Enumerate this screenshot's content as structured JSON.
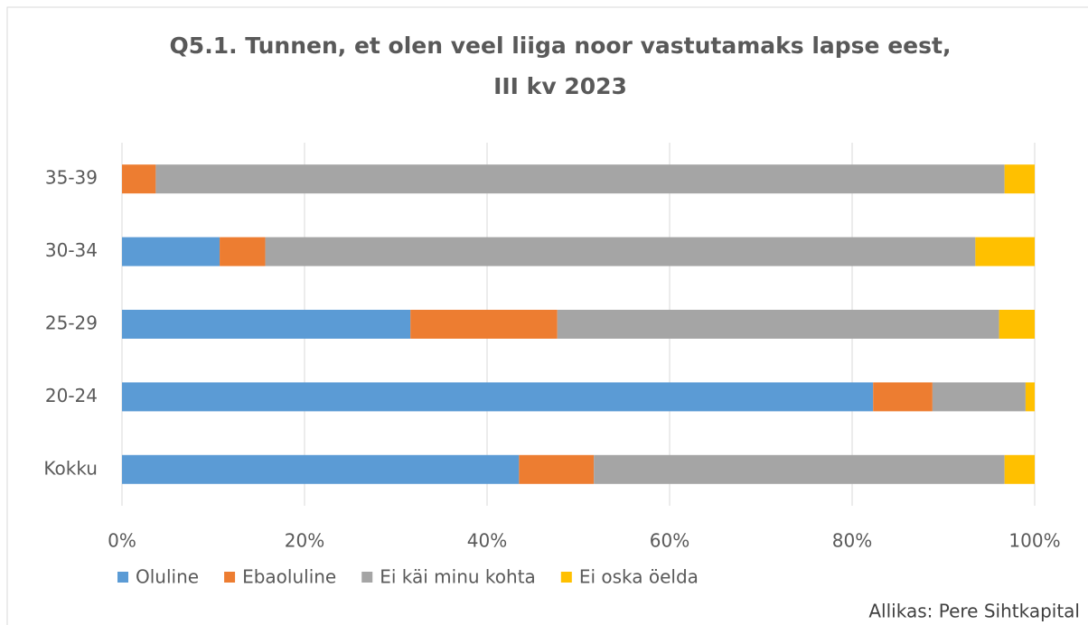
{
  "chart_data": {
    "type": "stacked-barh",
    "title": [
      "Q5.1. Tunnen, et olen veel liiga noor vastutamaks lapse eest,",
      "III kv 2023"
    ],
    "categories": [
      "35-39",
      "30-34",
      "25-29",
      "20-24",
      "Kokku"
    ],
    "series": [
      {
        "name": "Oluline",
        "color": "#5b9bd5",
        "values": [
          0,
          10.7,
          31.6,
          82.3,
          43.5
        ]
      },
      {
        "name": "Ebaoluline",
        "color": "#ed7d31",
        "values": [
          3.7,
          5.0,
          16.1,
          6.5,
          8.2
        ]
      },
      {
        "name": "Ei käi minu kohta",
        "color": "#a5a5a5",
        "values": [
          93.0,
          77.8,
          48.4,
          10.2,
          45.0
        ]
      },
      {
        "name": "Ei oska öelda",
        "color": "#ffc000",
        "values": [
          3.3,
          6.5,
          3.9,
          1.0,
          3.3
        ]
      }
    ],
    "xlim": [
      0,
      100
    ],
    "xticks": [
      {
        "value": 0,
        "label": "0%"
      },
      {
        "value": 20,
        "label": "20%"
      },
      {
        "value": 40,
        "label": "40%"
      },
      {
        "value": 60,
        "label": "60%"
      },
      {
        "value": 80,
        "label": "80%"
      },
      {
        "value": 100,
        "label": "100%"
      }
    ],
    "grid": true,
    "legend": "bottom",
    "source": "Allikas: Pere Sihtkapital"
  }
}
